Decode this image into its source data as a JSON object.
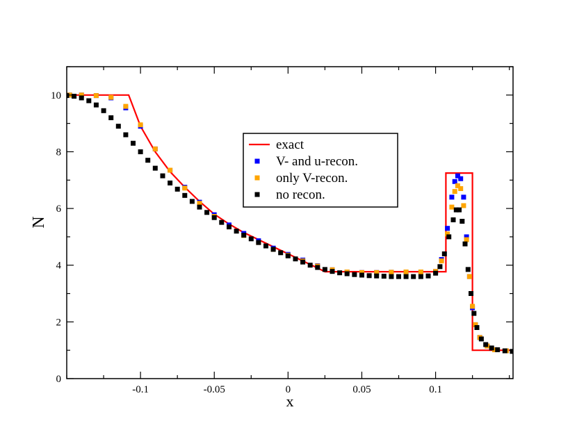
{
  "chart_data": {
    "type": "line",
    "title": "",
    "xlabel": "x",
    "ylabel": "N",
    "xlim": [
      -0.15,
      0.1525
    ],
    "ylim": [
      0,
      11
    ],
    "xticks": [
      -0.1,
      -0.05,
      0,
      0.05,
      0.1
    ],
    "xtick_labels": [
      "-0.1",
      "-0.05",
      "0",
      "0.05",
      "0.1"
    ],
    "yticks": [
      0,
      2,
      4,
      6,
      8,
      10
    ],
    "ytick_labels": [
      "0",
      "2",
      "4",
      "6",
      "8",
      "10"
    ],
    "grid": false,
    "legend_position": "center",
    "series": [
      {
        "name": "exact",
        "style": "line",
        "color": "#ff0000",
        "x": [
          -0.15,
          -0.108,
          -0.1,
          -0.09,
          -0.08,
          -0.07,
          -0.06,
          -0.05,
          -0.04,
          -0.03,
          -0.02,
          -0.01,
          0,
          0.01,
          0.02,
          0.025,
          0.107,
          0.107,
          0.125,
          0.125,
          0.1525
        ],
        "y": [
          10,
          10,
          8.9,
          8.0,
          7.3,
          6.75,
          6.25,
          5.8,
          5.45,
          5.15,
          4.9,
          4.65,
          4.4,
          4.15,
          3.9,
          3.77,
          3.77,
          7.25,
          7.25,
          1.0,
          1.0
        ]
      },
      {
        "name": "V- and u-recon.",
        "style": "marker",
        "color": "#0000ff",
        "x": [
          -0.148,
          -0.14,
          -0.13,
          -0.12,
          -0.11,
          -0.1,
          -0.09,
          -0.08,
          -0.07,
          -0.06,
          -0.05,
          -0.04,
          -0.03,
          -0.02,
          -0.01,
          0,
          0.01,
          0.02,
          0.03,
          0.04,
          0.05,
          0.06,
          0.07,
          0.08,
          0.09,
          0.1,
          0.104,
          0.108,
          0.111,
          0.113,
          0.115,
          0.117,
          0.119,
          0.121,
          0.123,
          0.125,
          0.127,
          0.13,
          0.135,
          0.14,
          0.148
        ],
        "y": [
          10.0,
          10.0,
          9.98,
          9.9,
          9.55,
          8.9,
          8.1,
          7.35,
          6.75,
          6.22,
          5.78,
          5.42,
          5.12,
          4.86,
          4.6,
          4.38,
          4.18,
          3.98,
          3.84,
          3.76,
          3.74,
          3.74,
          3.75,
          3.75,
          3.75,
          3.78,
          4.2,
          5.3,
          6.4,
          6.95,
          7.15,
          7.05,
          6.4,
          5.0,
          3.6,
          2.5,
          1.9,
          1.45,
          1.15,
          1.02,
          0.98
        ]
      },
      {
        "name": "only V-recon.",
        "style": "marker",
        "color": "#ffa500",
        "x": [
          -0.148,
          -0.14,
          -0.13,
          -0.12,
          -0.11,
          -0.1,
          -0.09,
          -0.08,
          -0.07,
          -0.06,
          -0.05,
          -0.04,
          -0.03,
          -0.02,
          -0.01,
          0,
          0.01,
          0.02,
          0.03,
          0.04,
          0.05,
          0.06,
          0.07,
          0.08,
          0.09,
          0.1,
          0.104,
          0.108,
          0.111,
          0.113,
          0.115,
          0.117,
          0.119,
          0.121,
          0.123,
          0.125,
          0.127,
          0.13,
          0.135,
          0.14,
          0.148
        ],
        "y": [
          10.0,
          10.0,
          9.98,
          9.92,
          9.6,
          8.95,
          8.1,
          7.35,
          6.72,
          6.18,
          5.72,
          5.35,
          5.05,
          4.8,
          4.56,
          4.35,
          4.15,
          3.97,
          3.84,
          3.76,
          3.74,
          3.74,
          3.75,
          3.76,
          3.76,
          3.78,
          4.15,
          5.1,
          6.05,
          6.6,
          6.8,
          6.7,
          6.1,
          4.9,
          3.6,
          2.55,
          1.9,
          1.45,
          1.15,
          1.02,
          0.98
        ]
      },
      {
        "name": "no recon.",
        "style": "marker",
        "color": "#000000",
        "x": [
          -0.15,
          -0.145,
          -0.14,
          -0.135,
          -0.13,
          -0.125,
          -0.12,
          -0.115,
          -0.11,
          -0.105,
          -0.1,
          -0.095,
          -0.09,
          -0.085,
          -0.08,
          -0.075,
          -0.07,
          -0.065,
          -0.06,
          -0.055,
          -0.05,
          -0.045,
          -0.04,
          -0.035,
          -0.03,
          -0.025,
          -0.02,
          -0.015,
          -0.01,
          -0.005,
          0,
          0.005,
          0.01,
          0.015,
          0.02,
          0.025,
          0.03,
          0.035,
          0.04,
          0.045,
          0.05,
          0.055,
          0.06,
          0.065,
          0.07,
          0.075,
          0.08,
          0.085,
          0.09,
          0.095,
          0.1,
          0.103,
          0.106,
          0.109,
          0.112,
          0.114,
          0.116,
          0.118,
          0.12,
          0.122,
          0.124,
          0.126,
          0.128,
          0.131,
          0.134,
          0.138,
          0.142,
          0.147,
          0.152
        ],
        "y": [
          9.98,
          9.96,
          9.9,
          9.8,
          9.65,
          9.45,
          9.2,
          8.9,
          8.6,
          8.3,
          8.0,
          7.7,
          7.42,
          7.15,
          6.9,
          6.68,
          6.46,
          6.25,
          6.05,
          5.86,
          5.68,
          5.51,
          5.35,
          5.2,
          5.06,
          4.93,
          4.8,
          4.68,
          4.56,
          4.44,
          4.33,
          4.22,
          4.11,
          4.0,
          3.92,
          3.85,
          3.78,
          3.73,
          3.7,
          3.67,
          3.65,
          3.63,
          3.62,
          3.61,
          3.6,
          3.6,
          3.6,
          3.6,
          3.6,
          3.62,
          3.72,
          3.95,
          4.4,
          5.0,
          5.6,
          5.95,
          5.95,
          5.55,
          4.75,
          3.85,
          3.0,
          2.3,
          1.8,
          1.4,
          1.2,
          1.08,
          1.02,
          0.98,
          0.96
        ]
      }
    ]
  }
}
